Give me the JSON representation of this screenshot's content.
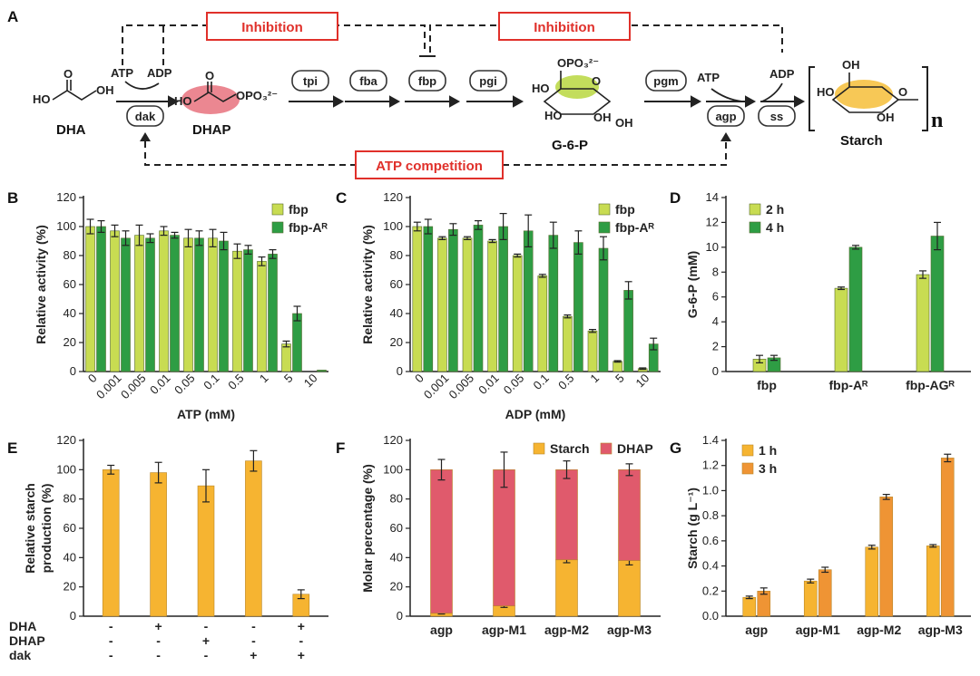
{
  "colors": {
    "fbp": "#c8dc52",
    "fbpA": "#2e9d44",
    "orange": "#f6b431",
    "orangeDark": "#ef9434",
    "dhap": "#e05a6c",
    "red": "#e0302a"
  },
  "panels": {
    "A": "A",
    "B": "B",
    "C": "C",
    "D": "D",
    "E": "E",
    "F": "F",
    "G": "G"
  },
  "pathway": {
    "inhibition1": "Inhibition",
    "inhibition2": "Inhibition",
    "atp_competition": "ATP competition",
    "enzymes": [
      "dak",
      "tpi",
      "fba",
      "fbp",
      "pgi",
      "pgm",
      "agp",
      "ss"
    ],
    "cofactors": {
      "atp1": "ATP",
      "adp1": "ADP",
      "atp2": "ATP",
      "adp2": "ADP"
    },
    "molecules": {
      "dha": "DHA",
      "dhap": "DHAP",
      "g6p": "G-6-P",
      "starch": "Starch"
    },
    "structure_text": {
      "ho": "HO",
      "oh": "OH",
      "o": "O",
      "opo3": "OPO₃²⁻",
      "n": "n"
    }
  },
  "chart_data": [
    {
      "panel": "B",
      "type": "bar",
      "categories": [
        "0",
        "0.001",
        "0.005",
        "0.01",
        "0.05",
        "0.1",
        "0.5",
        "1",
        "5",
        "10"
      ],
      "series": [
        {
          "name": "fbp",
          "values": [
            100,
            97,
            94,
            97,
            92,
            92,
            83,
            76,
            19,
            0
          ],
          "errors": [
            5,
            4,
            7,
            3,
            6,
            6,
            5,
            3,
            2,
            0
          ]
        },
        {
          "name": "fbp-Aᴿ",
          "values": [
            100,
            92,
            92,
            94,
            92,
            90,
            84,
            81,
            40,
            1
          ],
          "errors": [
            4,
            5,
            3,
            2,
            5,
            6,
            3,
            3,
            5,
            0
          ]
        }
      ],
      "xlabel": "ATP (mM)",
      "ylabel": "Relative activity (%)",
      "ylim": [
        0,
        120
      ],
      "yticks": [
        0,
        20,
        40,
        60,
        80,
        100,
        120
      ],
      "legend": "top-right"
    },
    {
      "panel": "C",
      "type": "bar",
      "categories": [
        "0",
        "0.001",
        "0.005",
        "0.01",
        "0.05",
        "0.1",
        "0.5",
        "1",
        "5",
        "10"
      ],
      "series": [
        {
          "name": "fbp",
          "values": [
            100,
            92,
            92,
            90,
            80,
            66,
            38,
            28,
            7,
            2
          ],
          "errors": [
            3,
            1,
            1,
            1,
            1,
            1,
            1,
            1,
            0.5,
            0.5
          ]
        },
        {
          "name": "fbp-Aᴿ",
          "values": [
            100,
            98,
            101,
            100,
            97,
            94,
            89,
            85,
            56,
            19
          ],
          "errors": [
            5,
            4,
            3,
            9,
            11,
            9,
            8,
            8,
            6,
            4
          ]
        }
      ],
      "xlabel": "ADP (mM)",
      "ylabel": "Relative activity (%)",
      "ylim": [
        0,
        120
      ],
      "yticks": [
        0,
        20,
        40,
        60,
        80,
        100,
        120
      ],
      "legend": "top-right"
    },
    {
      "panel": "D",
      "type": "bar",
      "categories": [
        "fbp",
        "fbp-Aᴿ",
        "fbp-AGᴿ"
      ],
      "series": [
        {
          "name": "2 h",
          "values": [
            1.0,
            6.7,
            7.8
          ],
          "errors": [
            0.3,
            0.1,
            0.3
          ]
        },
        {
          "name": "4 h",
          "values": [
            1.1,
            10.0,
            10.9
          ],
          "errors": [
            0.2,
            0.15,
            1.1
          ]
        }
      ],
      "ylabel": "G-6-P (mM)",
      "ylim": [
        0,
        14
      ],
      "yticks": [
        0,
        2,
        4,
        6,
        8,
        10,
        12,
        14
      ],
      "legend": "top-left"
    },
    {
      "panel": "E",
      "type": "bar",
      "categories": [
        "1",
        "2",
        "3",
        "4",
        "5"
      ],
      "values": [
        100,
        98,
        89,
        106,
        15
      ],
      "errors": [
        3,
        7,
        11,
        7,
        3
      ],
      "ylabel": "Relative starch production (%)",
      "ylim": [
        0,
        120
      ],
      "yticks": [
        0,
        20,
        40,
        60,
        80,
        100,
        120
      ],
      "conditions": [
        {
          "name": "DHA",
          "marks": [
            "-",
            "+",
            "-",
            "-",
            "+"
          ]
        },
        {
          "name": "DHAP",
          "marks": [
            "-",
            "-",
            "+",
            "-",
            "-"
          ]
        },
        {
          "name": "dak",
          "marks": [
            "-",
            "-",
            "-",
            "+",
            "+"
          ]
        }
      ]
    },
    {
      "panel": "F",
      "type": "bar",
      "stacked": true,
      "categories": [
        "agp",
        "agp-M1",
        "agp-M2",
        "agp-M3"
      ],
      "series": [
        {
          "name": "Starch",
          "values": [
            2,
            7,
            38.5,
            38
          ],
          "errors": [
            0.5,
            1,
            2,
            3
          ]
        },
        {
          "name": "DHAP",
          "values": [
            98,
            93,
            61.5,
            62
          ],
          "errors": [
            7,
            12,
            6,
            4
          ]
        }
      ],
      "ylabel": "Molar percentage (%)",
      "ylim": [
        0,
        120
      ],
      "yticks": [
        0,
        20,
        40,
        60,
        80,
        100,
        120
      ],
      "legend": "top"
    },
    {
      "panel": "G",
      "type": "bar",
      "categories": [
        "agp",
        "agp-M1",
        "agp-M2",
        "agp-M3"
      ],
      "series": [
        {
          "name": "1 h",
          "values": [
            0.15,
            0.28,
            0.55,
            0.56
          ],
          "errors": [
            0.01,
            0.015,
            0.015,
            0.01
          ]
        },
        {
          "name": "3 h",
          "values": [
            0.2,
            0.37,
            0.95,
            1.26
          ],
          "errors": [
            0.025,
            0.02,
            0.02,
            0.03
          ]
        }
      ],
      "ylabel": "Starch (g L⁻¹)",
      "ylim": [
        0,
        1.4
      ],
      "yticks": [
        0,
        0.2,
        0.4,
        0.6,
        0.8,
        1.0,
        1.2,
        1.4
      ],
      "legend": "top-left"
    }
  ]
}
